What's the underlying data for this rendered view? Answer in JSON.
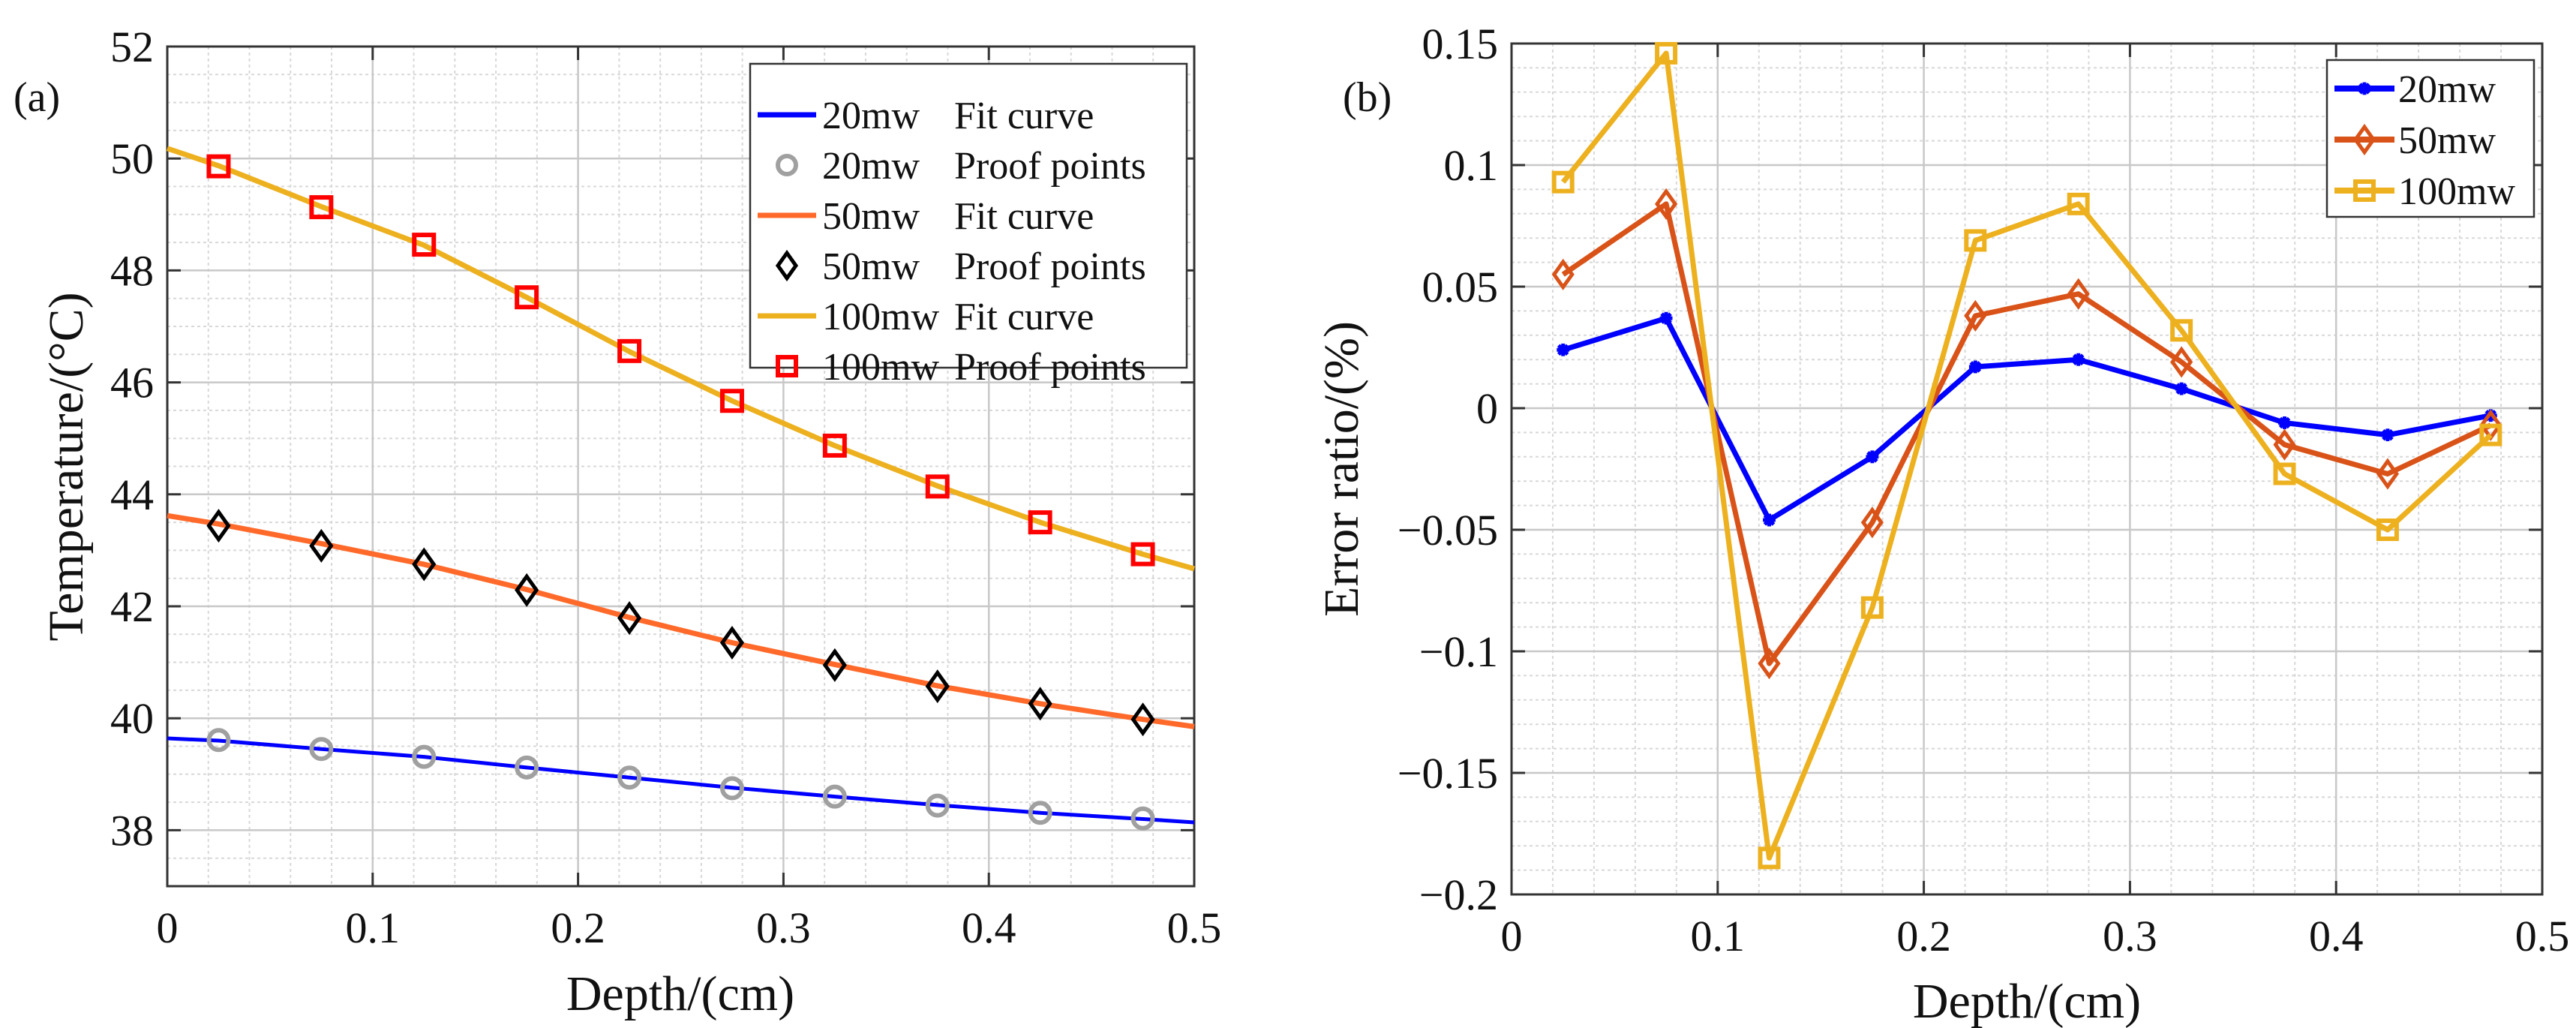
{
  "chart_data": [
    {
      "type": "line",
      "panel_label": "(a)",
      "title": "",
      "xlabel": "Depth/(cm)",
      "ylabel": "Temperature/(°C)",
      "xlim": [
        0,
        0.5
      ],
      "ylim": [
        37,
        52
      ],
      "xticks": [
        "0",
        "0.1",
        "0.2",
        "0.3",
        "0.4",
        "0.5"
      ],
      "xtick_values": [
        0,
        0.1,
        0.2,
        0.3,
        0.4,
        0.5
      ],
      "yticks": [
        "38",
        "40",
        "42",
        "44",
        "46",
        "48",
        "50",
        "52"
      ],
      "ytick_values": [
        38,
        40,
        42,
        44,
        46,
        48,
        50,
        52
      ],
      "grid": true,
      "legend_position": "top-right",
      "x_fit": [
        0,
        0.025,
        0.075,
        0.125,
        0.175,
        0.225,
        0.275,
        0.325,
        0.375,
        0.425,
        0.475,
        0.5
      ],
      "x_points": [
        0.025,
        0.075,
        0.125,
        0.175,
        0.225,
        0.275,
        0.325,
        0.375,
        0.425,
        0.475
      ],
      "series": [
        {
          "name": "20mw",
          "fit_label": "Fit curve",
          "points_label": "Proof points",
          "color": "#0000ff",
          "marker": "circle",
          "marker_color": "#a0a0a0",
          "fit": [
            39.64,
            39.6,
            39.45,
            39.31,
            39.12,
            38.94,
            38.76,
            38.6,
            38.45,
            38.31,
            38.2,
            38.14
          ],
          "points": [
            39.61,
            39.45,
            39.31,
            39.12,
            38.94,
            38.75,
            38.6,
            38.44,
            38.31,
            38.21
          ]
        },
        {
          "name": "50mw",
          "fit_label": "Fit curve",
          "points_label": "Proof points",
          "color": "#ff6a2b",
          "marker": "diamond",
          "marker_color": "#000000",
          "fit": [
            43.62,
            43.47,
            43.12,
            42.75,
            42.3,
            41.8,
            41.35,
            40.96,
            40.58,
            40.26,
            39.98,
            39.85
          ],
          "points": [
            43.44,
            43.08,
            42.75,
            42.29,
            41.79,
            41.35,
            40.95,
            40.57,
            40.26,
            39.98
          ]
        },
        {
          "name": "100mw",
          "fit_label": "Fit curve",
          "points_label": "Proof points",
          "color": "#edb120",
          "marker": "square",
          "marker_color": "#ff0000",
          "fit": [
            50.18,
            49.87,
            49.14,
            48.45,
            47.52,
            46.55,
            45.67,
            44.87,
            44.15,
            43.5,
            42.93,
            42.67
          ],
          "points": [
            49.86,
            49.13,
            48.46,
            47.52,
            46.56,
            45.67,
            44.87,
            44.14,
            43.5,
            42.93
          ]
        }
      ]
    },
    {
      "type": "line",
      "panel_label": "(b)",
      "title": "",
      "xlabel": "Depth/(cm)",
      "ylabel": "Error ratio/(%)",
      "xlim": [
        0,
        0.5
      ],
      "ylim": [
        -0.2,
        0.15
      ],
      "xticks": [
        "0",
        "0.1",
        "0.2",
        "0.3",
        "0.4",
        "0.5"
      ],
      "xtick_values": [
        0,
        0.1,
        0.2,
        0.3,
        0.4,
        0.5
      ],
      "yticks": [
        "-0.2",
        "-0.15",
        "-0.1",
        "-0.05",
        "0",
        "0.05",
        "0.1",
        "0.15"
      ],
      "ytick_values": [
        -0.2,
        -0.15,
        -0.1,
        -0.05,
        0,
        0.05,
        0.1,
        0.15
      ],
      "grid": true,
      "legend_position": "top-right",
      "x": [
        0.025,
        0.075,
        0.125,
        0.175,
        0.225,
        0.275,
        0.325,
        0.375,
        0.425,
        0.475
      ],
      "series": [
        {
          "name": "20mw",
          "color": "#0000ff",
          "marker": "asterisk",
          "values": [
            0.024,
            0.037,
            -0.046,
            -0.02,
            0.017,
            0.02,
            0.008,
            -0.006,
            -0.011,
            -0.003
          ]
        },
        {
          "name": "50mw",
          "color": "#d95319",
          "marker": "diamond",
          "values": [
            0.055,
            0.084,
            -0.105,
            -0.047,
            0.038,
            0.047,
            0.019,
            -0.015,
            -0.027,
            -0.007
          ]
        },
        {
          "name": "100mw",
          "color": "#edb120",
          "marker": "square",
          "values": [
            0.093,
            0.146,
            -0.185,
            -0.082,
            0.069,
            0.084,
            0.032,
            -0.027,
            -0.05,
            -0.011
          ]
        }
      ]
    }
  ]
}
